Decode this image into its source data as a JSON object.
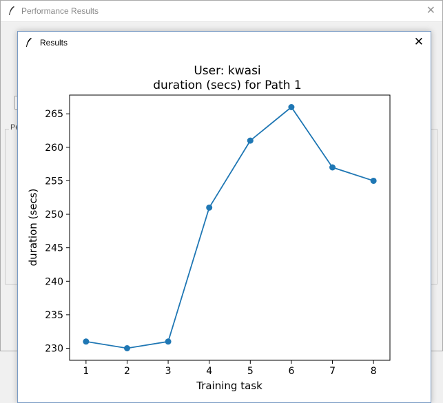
{
  "back_window": {
    "title": "Performance Results",
    "frame_label": "Pe"
  },
  "front_window": {
    "title": "Results"
  },
  "icons": {
    "app": "feather-icon",
    "close": "close-icon"
  },
  "colors": {
    "line": "#1f77b4"
  },
  "chart_data": {
    "type": "line",
    "title": "User: kwasi",
    "subtitle": "duration (secs) for Path 1",
    "xlabel": "Training task",
    "ylabel": "duration (secs)",
    "x": [
      1,
      2,
      3,
      4,
      5,
      6,
      7,
      8
    ],
    "y": [
      231,
      230,
      231,
      251,
      261,
      266,
      257,
      255
    ],
    "xticks": [
      "1",
      "2",
      "3",
      "4",
      "5",
      "6",
      "7",
      "8"
    ],
    "yticks": [
      "230",
      "235",
      "240",
      "245",
      "250",
      "255",
      "260",
      "265"
    ],
    "xlim": [
      0.6,
      8.4
    ],
    "ylim": [
      228.2,
      267.8
    ],
    "markers": true,
    "grid": false
  }
}
